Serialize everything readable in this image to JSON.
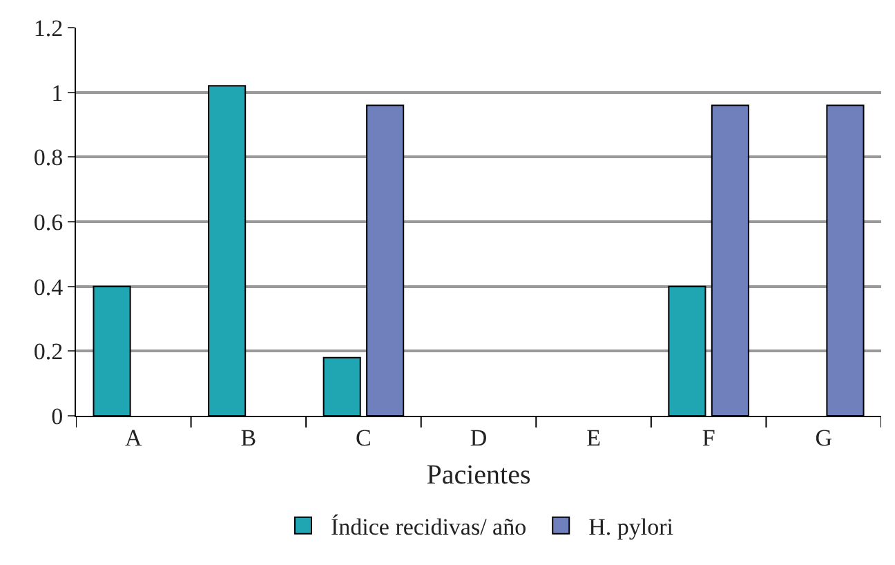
{
  "chart_data": {
    "type": "bar",
    "xlabel": "Pacientes",
    "categories": [
      "A",
      "B",
      "C",
      "D",
      "E",
      "F",
      "G"
    ],
    "series": [
      {
        "name": "Índice recidivas/ año",
        "color": "#20a6b2",
        "values": [
          0.4,
          1.02,
          0.18,
          null,
          null,
          0.4,
          null
        ]
      },
      {
        "name": "H. pylori",
        "color": "#7080bd",
        "values": [
          null,
          null,
          0.96,
          null,
          null,
          0.96,
          0.96
        ]
      }
    ],
    "ylim": [
      0,
      1.2
    ],
    "yticks": [
      0,
      0.2,
      0.4,
      0.6,
      0.8,
      1,
      1.2
    ],
    "grid": "y",
    "legend": "bottom"
  }
}
